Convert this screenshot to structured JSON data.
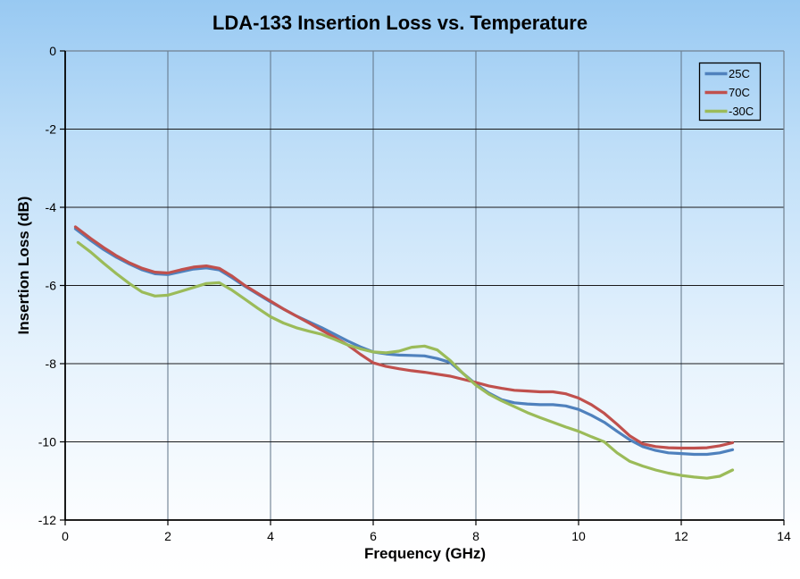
{
  "title": "LDA-133 Insertion Loss vs. Temperature",
  "chart_data": {
    "type": "line",
    "title": "LDA-133 Insertion Loss vs. Temperature",
    "xlabel": "Frequency (GHz)",
    "ylabel": "Insertion Loss (dB)",
    "xlim": [
      0,
      14
    ],
    "ylim": [
      -12,
      0
    ],
    "xticks": [
      0,
      2,
      4,
      6,
      8,
      10,
      12,
      14
    ],
    "yticks": [
      0,
      -2,
      -4,
      -6,
      -8,
      -10,
      -12
    ],
    "grid": true,
    "legend": {
      "position": "top-right",
      "entries": [
        "25C",
        "70C",
        "-30C"
      ]
    },
    "series": [
      {
        "name": "25C",
        "color": "#4f81bd",
        "x": [
          0.2,
          0.5,
          0.75,
          1,
          1.25,
          1.5,
          1.75,
          2,
          2.25,
          2.5,
          2.75,
          3,
          3.25,
          3.5,
          3.75,
          4,
          4.25,
          4.5,
          4.75,
          5,
          5.25,
          5.5,
          5.75,
          6,
          6.25,
          6.5,
          6.75,
          7,
          7.25,
          7.5,
          7.75,
          8,
          8.25,
          8.5,
          8.75,
          9,
          9.25,
          9.5,
          9.75,
          10,
          10.25,
          10.5,
          10.75,
          11,
          11.25,
          11.5,
          11.75,
          12,
          12.25,
          12.5,
          12.75,
          13
        ],
        "y": [
          -4.55,
          -4.85,
          -5.08,
          -5.28,
          -5.45,
          -5.6,
          -5.7,
          -5.72,
          -5.65,
          -5.58,
          -5.55,
          -5.6,
          -5.8,
          -6.02,
          -6.22,
          -6.42,
          -6.6,
          -6.78,
          -6.93,
          -7.08,
          -7.25,
          -7.42,
          -7.57,
          -7.7,
          -7.75,
          -7.78,
          -7.79,
          -7.8,
          -7.87,
          -7.97,
          -8.25,
          -8.52,
          -8.75,
          -8.92,
          -9.0,
          -9.03,
          -9.05,
          -9.05,
          -9.08,
          -9.17,
          -9.32,
          -9.5,
          -9.73,
          -9.95,
          -10.12,
          -10.22,
          -10.28,
          -10.3,
          -10.32,
          -10.32,
          -10.28,
          -10.2
        ]
      },
      {
        "name": "70C",
        "color": "#c0504d",
        "x": [
          0.2,
          0.5,
          0.75,
          1,
          1.25,
          1.5,
          1.75,
          2,
          2.25,
          2.5,
          2.75,
          3,
          3.25,
          3.5,
          3.75,
          4,
          4.25,
          4.5,
          4.75,
          5,
          5.25,
          5.5,
          5.75,
          6,
          6.25,
          6.5,
          6.75,
          7,
          7.25,
          7.5,
          7.75,
          8,
          8.25,
          8.5,
          8.75,
          9,
          9.25,
          9.5,
          9.75,
          10,
          10.25,
          10.5,
          10.75,
          11,
          11.25,
          11.5,
          11.75,
          12,
          12.25,
          12.5,
          12.75,
          13
        ],
        "y": [
          -4.5,
          -4.8,
          -5.03,
          -5.24,
          -5.42,
          -5.56,
          -5.66,
          -5.68,
          -5.6,
          -5.53,
          -5.5,
          -5.56,
          -5.76,
          -6.0,
          -6.2,
          -6.4,
          -6.6,
          -6.78,
          -6.96,
          -7.15,
          -7.33,
          -7.52,
          -7.76,
          -7.98,
          -8.07,
          -8.13,
          -8.18,
          -8.22,
          -8.27,
          -8.32,
          -8.4,
          -8.48,
          -8.57,
          -8.63,
          -8.68,
          -8.7,
          -8.72,
          -8.72,
          -8.77,
          -8.88,
          -9.05,
          -9.27,
          -9.55,
          -9.85,
          -10.05,
          -10.12,
          -10.15,
          -10.16,
          -10.16,
          -10.15,
          -10.1,
          -10.02
        ]
      },
      {
        "name": "-30C",
        "color": "#9bbb59",
        "x": [
          0.25,
          0.5,
          0.75,
          1,
          1.25,
          1.5,
          1.75,
          2,
          2.25,
          2.5,
          2.75,
          3,
          3.25,
          3.5,
          3.75,
          4,
          4.25,
          4.5,
          4.75,
          5,
          5.25,
          5.5,
          5.75,
          6,
          6.25,
          6.5,
          6.75,
          7,
          7.25,
          7.5,
          7.75,
          8,
          8.25,
          8.5,
          8.75,
          9,
          9.25,
          9.5,
          9.75,
          10,
          10.25,
          10.5,
          10.75,
          11,
          11.25,
          11.5,
          11.75,
          12,
          12.25,
          12.5,
          12.75,
          13
        ],
        "y": [
          -4.9,
          -5.15,
          -5.43,
          -5.7,
          -5.95,
          -6.17,
          -6.27,
          -6.25,
          -6.15,
          -6.05,
          -5.95,
          -5.93,
          -6.12,
          -6.35,
          -6.58,
          -6.8,
          -6.96,
          -7.08,
          -7.17,
          -7.25,
          -7.38,
          -7.52,
          -7.62,
          -7.7,
          -7.72,
          -7.68,
          -7.58,
          -7.55,
          -7.65,
          -7.92,
          -8.25,
          -8.55,
          -8.78,
          -8.95,
          -9.1,
          -9.25,
          -9.38,
          -9.5,
          -9.62,
          -9.73,
          -9.87,
          -10.0,
          -10.28,
          -10.5,
          -10.62,
          -10.72,
          -10.8,
          -10.86,
          -10.9,
          -10.93,
          -10.88,
          -10.72
        ]
      }
    ]
  },
  "colors": {
    "background_top": "#98c9f2",
    "background_bottom": "#ffffff",
    "h_gridline": "#1a1a1a",
    "v_gridline": "#5f7285",
    "plot_border": "#71808f",
    "axis": "#000000",
    "text": "#000000"
  }
}
